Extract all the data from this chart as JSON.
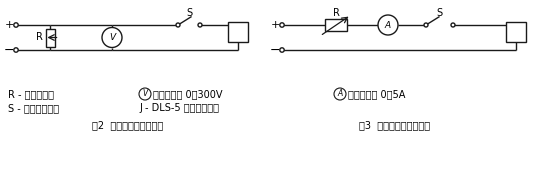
{
  "bg_color": "#ffffff",
  "line_color": "#1a1a1a",
  "line_width": 1.0,
  "fig_width": 5.36,
  "fig_height": 1.82,
  "dpi": 100,
  "caption_left": "图2  动作电压检验线路图",
  "caption_right": "图3  动作电流检验线路图",
  "leg_r": "R - 滑线电阻器",
  "leg_s": "S - 单刀单掷开关",
  "leg_v": "直流电压表 0～300V",
  "leg_j": "J - DLS-5 双位置继电器",
  "leg_a": "直流电流表 0～5A"
}
